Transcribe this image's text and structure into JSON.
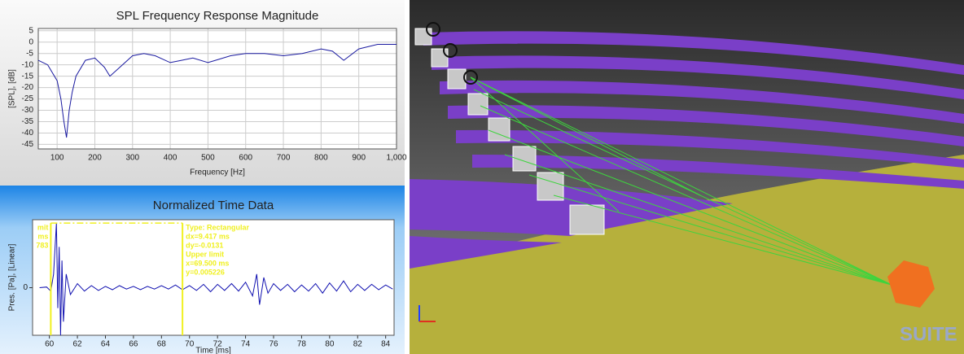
{
  "chart_data": [
    {
      "type": "line",
      "title": "SPL Frequency Response Magnitude",
      "x_label": "Frequency [Hz]",
      "y_label": "[SPL], [dB]",
      "x": [
        50,
        75,
        100,
        110,
        118,
        125,
        132,
        140,
        150,
        175,
        200,
        225,
        240,
        260,
        300,
        330,
        360,
        400,
        430,
        460,
        500,
        520,
        560,
        600,
        650,
        700,
        750,
        800,
        830,
        860,
        900,
        950,
        1000
      ],
      "values": [
        -8,
        -10,
        -17,
        -25,
        -35,
        -42,
        -30,
        -22,
        -15,
        -8,
        -7,
        -11,
        -15,
        -12,
        -6,
        -5,
        -6,
        -9,
        -8,
        -7,
        -9,
        -8,
        -6,
        -5,
        -5,
        -6,
        -5,
        -3,
        -4,
        -8,
        -3,
        -1,
        -1
      ],
      "color": "#1a1aa0",
      "xlim": [
        50,
        1000
      ],
      "xticks": [
        100,
        200,
        300,
        400,
        500,
        600,
        700,
        800,
        900,
        {
          "value": 1000,
          "label": "1,000"
        }
      ],
      "ylim": [
        -47,
        6
      ],
      "yticks": [
        5,
        0,
        -5,
        -10,
        -15,
        -20,
        -25,
        -30,
        -35,
        -40,
        -45
      ],
      "grid": true
    },
    {
      "type": "line",
      "title": "Normalized Time Data",
      "x_label": "Time [ms]",
      "y_label": "Pres. [Pa], [Linear]",
      "x": [
        59.3,
        59.8,
        60.1,
        60.3,
        60.5,
        60.6,
        60.7,
        60.8,
        60.9,
        61.0,
        61.2,
        61.5,
        62,
        62.5,
        63,
        63.5,
        64,
        64.5,
        65,
        65.5,
        66,
        66.5,
        67,
        67.5,
        68,
        68.5,
        69,
        69.5,
        70,
        70.5,
        71,
        71.5,
        72,
        72.5,
        73,
        73.5,
        74,
        74.5,
        74.8,
        75,
        75.3,
        75.6,
        76,
        76.5,
        77,
        77.5,
        78,
        78.5,
        79,
        79.5,
        80,
        80.5,
        81,
        81.5,
        82,
        82.5,
        83,
        83.5,
        84,
        84.5
      ],
      "values": [
        0,
        0.01,
        -0.05,
        0.2,
        0.95,
        -0.3,
        0.6,
        -0.7,
        0.4,
        -0.5,
        0.2,
        -0.1,
        0.06,
        -0.05,
        0.03,
        -0.04,
        0.02,
        -0.03,
        0.03,
        -0.02,
        0.02,
        -0.03,
        0.02,
        -0.02,
        0.03,
        -0.02,
        0.04,
        -0.03,
        0.03,
        -0.04,
        0.05,
        -0.06,
        0.05,
        -0.04,
        0.06,
        -0.05,
        0.08,
        -0.12,
        0.2,
        -0.25,
        0.15,
        -0.08,
        0.06,
        -0.04,
        0.05,
        -0.06,
        0.04,
        -0.05,
        0.06,
        -0.08,
        0.07,
        -0.05,
        0.1,
        -0.06,
        0.05,
        -0.04,
        0.05,
        -0.03,
        0.04,
        -0.02
      ],
      "color": "#1010b0",
      "xlim": [
        58.8,
        84.6
      ],
      "xticks": [
        60,
        62,
        64,
        66,
        68,
        70,
        72,
        74,
        76,
        78,
        80,
        82,
        84
      ],
      "ylim": [
        -0.7,
        1
      ],
      "yticks": [
        0
      ],
      "grid": false,
      "cursors": [
        60.1,
        69.5
      ],
      "cursor_top": 0.95,
      "cursor_color": "#f0f020",
      "annotations": [
        "Type: Rectangular",
        "dx=9.417 ms",
        "dy=-0.0131",
        "Upper limit",
        "x=69.500 ms",
        "y=0.005226"
      ],
      "annotations_left": [
        "mit",
        "ms",
        "783"
      ]
    }
  ],
  "render": {
    "logo": "SUITE"
  }
}
